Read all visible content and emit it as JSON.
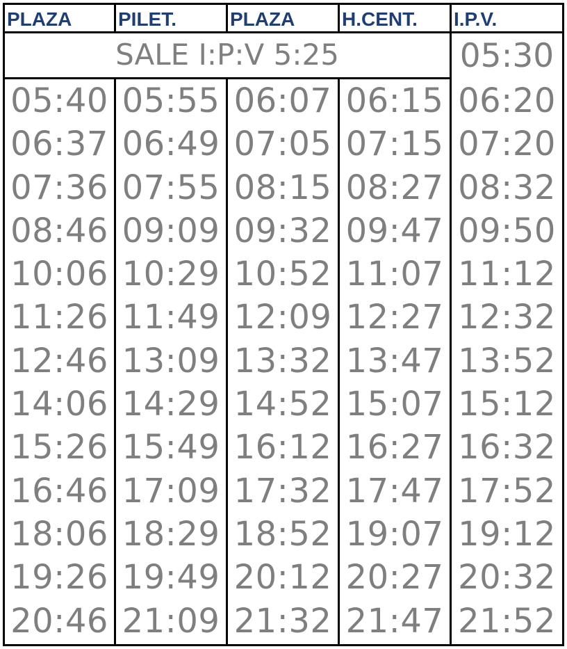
{
  "headers": [
    "PLAZA",
    "PILET.",
    "PLAZA",
    "H.CENT.",
    "I.P.V."
  ],
  "sale_note": "SALE I:P:V 5:25",
  "ipv_first": "05:30",
  "columns": [
    [
      "05:40",
      "06:37",
      "07:36",
      "08:46",
      "10:06",
      "11:26",
      "12:46",
      "14:06",
      "15:26",
      "16:46",
      "18:06",
      "19:26",
      "20:46"
    ],
    [
      "05:55",
      "06:49",
      "07:55",
      "09:09",
      "10:29",
      "11:49",
      "13:09",
      "14:29",
      "15:49",
      "17:09",
      "18:29",
      "19:49",
      "21:09"
    ],
    [
      "06:07",
      "07:05",
      "08:15",
      "09:32",
      "10:52",
      "12:09",
      "13:32",
      "14:52",
      "16:12",
      "17:32",
      "18:52",
      "20:12",
      "21:32"
    ],
    [
      "06:15",
      "07:15",
      "08:27",
      "09:47",
      "11:07",
      "12:27",
      "13:47",
      "15:07",
      "16:27",
      "17:47",
      "19:07",
      "20:27",
      "21:47"
    ],
    [
      "06:20",
      "07:20",
      "08:32",
      "09:50",
      "11:12",
      "12:32",
      "13:52",
      "15:12",
      "16:32",
      "17:52",
      "19:12",
      "20:32",
      "21:52"
    ]
  ]
}
